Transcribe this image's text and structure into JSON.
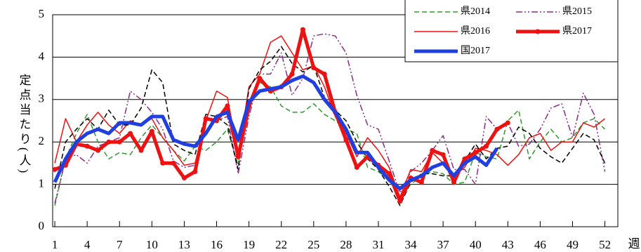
{
  "chart_data": {
    "type": "line",
    "x": [
      1,
      2,
      3,
      4,
      5,
      6,
      7,
      8,
      9,
      10,
      11,
      12,
      13,
      14,
      15,
      16,
      17,
      18,
      19,
      20,
      21,
      22,
      23,
      24,
      25,
      26,
      27,
      28,
      29,
      30,
      31,
      32,
      33,
      34,
      35,
      36,
      37,
      38,
      39,
      40,
      41,
      42,
      43,
      44,
      45,
      46,
      47,
      48,
      49,
      50,
      51,
      52
    ],
    "xlim": [
      0.8,
      53.2
    ],
    "xticks": [
      1,
      4,
      7,
      10,
      13,
      16,
      19,
      22,
      25,
      28,
      31,
      34,
      37,
      40,
      43,
      46,
      49,
      52
    ],
    "ylim": [
      0,
      5
    ],
    "yticks": [
      0,
      1,
      2,
      3,
      4,
      5
    ],
    "grid": true,
    "ylabel": "定点当たり(人)",
    "xlabel": "週",
    "legend": "upper right",
    "series": [
      {
        "name": "県2014",
        "color": "#2e9a2e",
        "style": "dashed",
        "values": [
          0.5,
          1.6,
          2.2,
          2.65,
          2.0,
          1.6,
          1.75,
          1.7,
          2.1,
          2.4,
          2.1,
          1.8,
          1.55,
          1.9,
          1.8,
          2.0,
          2.3,
          1.45,
          2.9,
          3.4,
          3.3,
          2.85,
          2.7,
          2.7,
          2.9,
          2.65,
          2.5,
          2.3,
          2.2,
          1.4,
          1.3,
          1.1,
          0.7,
          1.0,
          1.2,
          1.3,
          1.25,
          1.0,
          1.05,
          1.75,
          1.65,
          1.6,
          2.5,
          2.75,
          1.6,
          2.0,
          2.3,
          2.0,
          2.1,
          2.45,
          2.55,
          2.3
        ]
      },
      {
        "name": "県2015",
        "color": "#8b2c8b",
        "style": "dashdot",
        "values": [
          0.55,
          1.6,
          1.7,
          1.5,
          1.9,
          2.0,
          2.1,
          3.2,
          3.0,
          2.7,
          2.3,
          1.55,
          1.4,
          1.45,
          2.6,
          2.5,
          2.6,
          1.25,
          2.6,
          3.6,
          3.6,
          4.1,
          3.1,
          3.5,
          4.5,
          4.55,
          4.5,
          4.1,
          3.1,
          2.4,
          2.3,
          1.55,
          0.8,
          1.3,
          1.5,
          1.8,
          2.15,
          1.35,
          1.35,
          1.0,
          2.6,
          2.3,
          2.45,
          1.9,
          1.95,
          2.3,
          2.8,
          2.9,
          2.1,
          3.15,
          2.65,
          1.3
        ]
      },
      {
        "name": "県2016",
        "color": "#ee1111",
        "style": "thin",
        "values": [
          1.5,
          2.55,
          2.0,
          2.4,
          2.7,
          2.4,
          2.2,
          2.5,
          2.4,
          2.55,
          2.1,
          1.8,
          1.45,
          1.5,
          2.5,
          3.2,
          3.05,
          1.7,
          3.3,
          3.6,
          4.35,
          4.5,
          4.1,
          3.7,
          3.8,
          3.3,
          2.6,
          2.2,
          1.65,
          2.1,
          1.8,
          1.4,
          0.7,
          1.35,
          1.3,
          1.75,
          1.5,
          1.2,
          1.4,
          1.85,
          1.8,
          1.7,
          1.45,
          1.7,
          2.1,
          2.2,
          1.8,
          2.0,
          2.0,
          2.45,
          2.35,
          2.55
        ]
      },
      {
        "name": "県2017",
        "color": "#ee1111",
        "style": "thick-dot",
        "values": [
          1.35,
          1.45,
          1.95,
          1.9,
          1.8,
          2.0,
          2.0,
          2.2,
          1.8,
          2.25,
          1.5,
          1.5,
          1.15,
          1.3,
          2.55,
          2.5,
          2.85,
          1.65,
          2.85,
          3.5,
          3.2,
          3.3,
          3.6,
          4.65,
          3.75,
          3.6,
          2.7,
          2.05,
          1.4,
          1.65,
          1.45,
          1.25,
          0.6,
          1.15,
          1.05,
          1.8,
          1.7,
          1.05,
          1.6,
          1.75,
          1.9,
          2.3,
          2.45,
          null,
          null,
          null,
          null,
          null,
          null,
          null,
          null,
          null
        ]
      },
      {
        "name": "国2017",
        "color": "#1f3fe0",
        "style": "thick",
        "values": [
          1.05,
          1.6,
          2.0,
          2.2,
          2.3,
          2.2,
          2.45,
          2.45,
          2.4,
          2.6,
          2.6,
          2.05,
          1.95,
          1.9,
          2.2,
          2.6,
          2.7,
          2.05,
          2.95,
          3.2,
          3.25,
          3.3,
          3.45,
          3.55,
          3.4,
          3.0,
          2.7,
          2.3,
          1.75,
          1.75,
          1.4,
          1.1,
          0.9,
          1.1,
          1.2,
          1.4,
          1.5,
          1.2,
          1.5,
          1.65,
          1.45,
          1.85,
          null,
          null,
          null,
          null,
          null,
          null,
          null,
          null,
          null,
          null
        ]
      },
      {
        "color": "#000000",
        "style": "dashed",
        "values": [
          0.9,
          2.0,
          2.3,
          2.55,
          2.3,
          2.75,
          2.4,
          2.4,
          2.8,
          3.7,
          3.4,
          1.95,
          1.8,
          1.7,
          2.65,
          2.6,
          2.4,
          1.35,
          3.25,
          3.7,
          3.9,
          4.25,
          3.85,
          3.65,
          3.8,
          3.05,
          2.75,
          2.5,
          2.0,
          1.6,
          1.35,
          0.95,
          0.5,
          1.05,
          1.25,
          1.25,
          1.2,
          1.2,
          1.55,
          1.95,
          1.6,
          1.85,
          1.9,
          2.35,
          2.2,
          1.85,
          1.65,
          1.5,
          1.85,
          2.2,
          2.05,
          1.5
        ]
      }
    ]
  }
}
